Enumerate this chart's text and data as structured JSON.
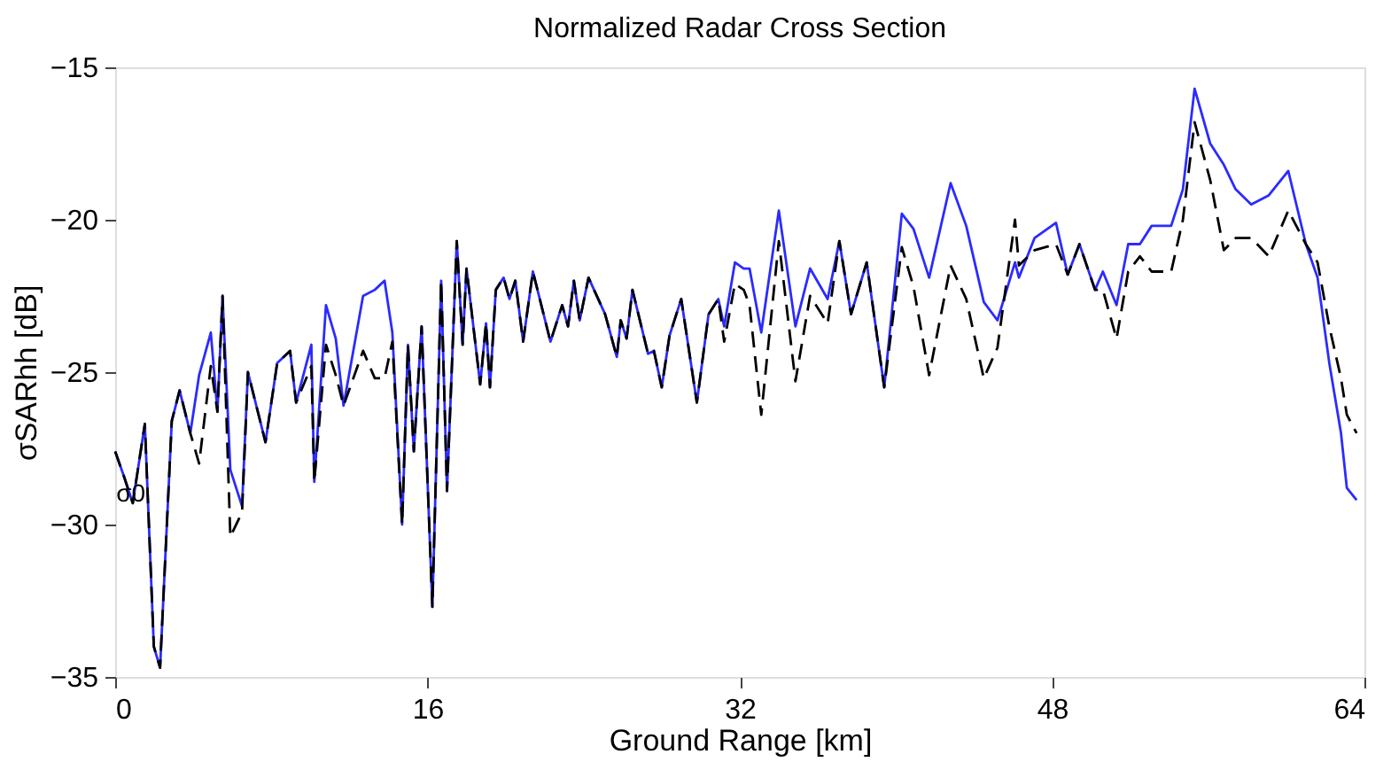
{
  "chart_data": {
    "type": "line",
    "title": "Normalized Radar Cross Section",
    "xlabel": "Ground Range [km]",
    "ylabel": "σSARhh [dB]",
    "xlim": [
      0,
      64
    ],
    "xticks": [
      0,
      16,
      32,
      48,
      64
    ],
    "ylim": [
      -35,
      -15
    ],
    "yticks": [
      -35,
      -30,
      -25,
      -20,
      -15
    ],
    "grid": false,
    "legend": false,
    "marker": "none",
    "annotations": [
      {
        "text": "σ0",
        "x": 0.8,
        "y": -29
      }
    ],
    "x": [
      0,
      0.44,
      0.9,
      1.52,
      1.98,
      2.3,
      2.9,
      3.3,
      3.85,
      4.3,
      4.9,
      5.24,
      5.5,
      5.9,
      6.5,
      6.8,
      7.7,
      8.3,
      8.96,
      9.27,
      10.05,
      10.2,
      10.8,
      11.3,
      11.7,
      12.7,
      13.3,
      13.8,
      14.2,
      14.7,
      15.0,
      15.3,
      15.7,
      16.25,
      16.7,
      17.0,
      17.5,
      17.8,
      18.0,
      18.7,
      19.0,
      19.2,
      19.5,
      19.9,
      20.2,
      20.5,
      20.9,
      21.4,
      22.3,
      22.9,
      23.2,
      23.5,
      23.8,
      24.25,
      25.1,
      25.7,
      25.9,
      26.2,
      26.5,
      27.3,
      27.6,
      28.0,
      28.4,
      29.0,
      29.8,
      30.4,
      30.9,
      31.2,
      31.75,
      32.2,
      32.5,
      33.1,
      34.0,
      34.85,
      35.6,
      36.5,
      37.1,
      37.7,
      38.5,
      39.4,
      40.3,
      40.9,
      41.7,
      42.8,
      43.6,
      44.5,
      45.2,
      46.1,
      46.3,
      47.1,
      48.2,
      48.8,
      49.4,
      50.2,
      50.6,
      51.3,
      51.9,
      52.5,
      53.1,
      54.1,
      54.7,
      55.3,
      56.1,
      56.8,
      57.4,
      58.2,
      59.1,
      60.1,
      61.0,
      61.6,
      62.2,
      62.8,
      63.1,
      63.6
    ],
    "series": [
      {
        "color": "#2b2bff",
        "line_style": "solid",
        "values": [
          -27.6,
          -28.4,
          -29.3,
          -26.7,
          -34.0,
          -34.7,
          -26.6,
          -25.6,
          -27.0,
          -25.1,
          -23.7,
          -26.3,
          -22.5,
          -28.2,
          -29.4,
          -25.0,
          -27.3,
          -24.7,
          -24.3,
          -26.0,
          -24.1,
          -28.6,
          -22.8,
          -23.9,
          -26.1,
          -22.5,
          -22.3,
          -22.0,
          -23.7,
          -30.0,
          -24.1,
          -27.6,
          -23.5,
          -32.7,
          -22.0,
          -28.9,
          -20.7,
          -24.1,
          -21.6,
          -25.4,
          -23.4,
          -25.5,
          -22.3,
          -21.9,
          -22.6,
          -22.0,
          -24.0,
          -21.7,
          -24.0,
          -22.8,
          -23.5,
          -22.0,
          -23.3,
          -21.9,
          -23.1,
          -24.5,
          -23.3,
          -23.9,
          -22.3,
          -24.4,
          -24.3,
          -25.5,
          -23.8,
          -22.6,
          -26.0,
          -23.1,
          -22.6,
          -23.5,
          -21.4,
          -21.6,
          -21.6,
          -23.7,
          -19.7,
          -23.5,
          -21.6,
          -22.6,
          -20.7,
          -23.1,
          -21.4,
          -25.5,
          -19.8,
          -20.3,
          -21.9,
          -18.8,
          -20.2,
          -22.7,
          -23.3,
          -21.4,
          -21.9,
          -20.6,
          -20.1,
          -21.8,
          -20.8,
          -22.3,
          -21.7,
          -22.8,
          -20.8,
          -20.8,
          -20.2,
          -20.2,
          -19.0,
          -15.7,
          -17.5,
          -18.2,
          -19.0,
          -19.5,
          -19.2,
          -18.4,
          -20.8,
          -21.9,
          -24.7,
          -27.0,
          -28.8,
          -29.2
        ]
      },
      {
        "color": "#000000",
        "line_style": "dashed",
        "values": [
          -27.6,
          -28.4,
          -29.3,
          -26.7,
          -34.0,
          -34.7,
          -26.6,
          -25.6,
          -27.0,
          -28.0,
          -24.8,
          -26.3,
          -22.5,
          -30.4,
          -29.6,
          -25.0,
          -27.3,
          -24.7,
          -24.3,
          -26.0,
          -24.8,
          -28.6,
          -24.1,
          -25.1,
          -26.1,
          -24.3,
          -25.2,
          -25.2,
          -24.0,
          -30.0,
          -24.1,
          -27.6,
          -23.5,
          -32.7,
          -22.0,
          -28.9,
          -20.7,
          -24.1,
          -21.6,
          -25.4,
          -23.4,
          -25.5,
          -22.3,
          -21.9,
          -22.6,
          -22.0,
          -24.0,
          -21.7,
          -24.0,
          -22.8,
          -23.5,
          -22.0,
          -23.3,
          -21.9,
          -23.1,
          -24.5,
          -23.3,
          -23.9,
          -22.3,
          -24.4,
          -24.3,
          -25.5,
          -23.8,
          -22.6,
          -26.0,
          -23.1,
          -22.6,
          -24.0,
          -22.1,
          -22.3,
          -22.8,
          -26.4,
          -20.7,
          -25.3,
          -22.5,
          -23.4,
          -20.7,
          -23.1,
          -21.4,
          -25.5,
          -20.9,
          -22.2,
          -25.1,
          -21.5,
          -22.6,
          -25.2,
          -24.2,
          -20.0,
          -21.5,
          -21.0,
          -20.8,
          -21.8,
          -20.8,
          -22.3,
          -22.3,
          -23.9,
          -21.7,
          -21.2,
          -21.7,
          -21.7,
          -20.0,
          -16.8,
          -18.7,
          -21.0,
          -20.6,
          -20.6,
          -21.2,
          -19.7,
          -20.8,
          -21.4,
          -23.5,
          -25.2,
          -26.4,
          -27.0
        ]
      }
    ]
  }
}
